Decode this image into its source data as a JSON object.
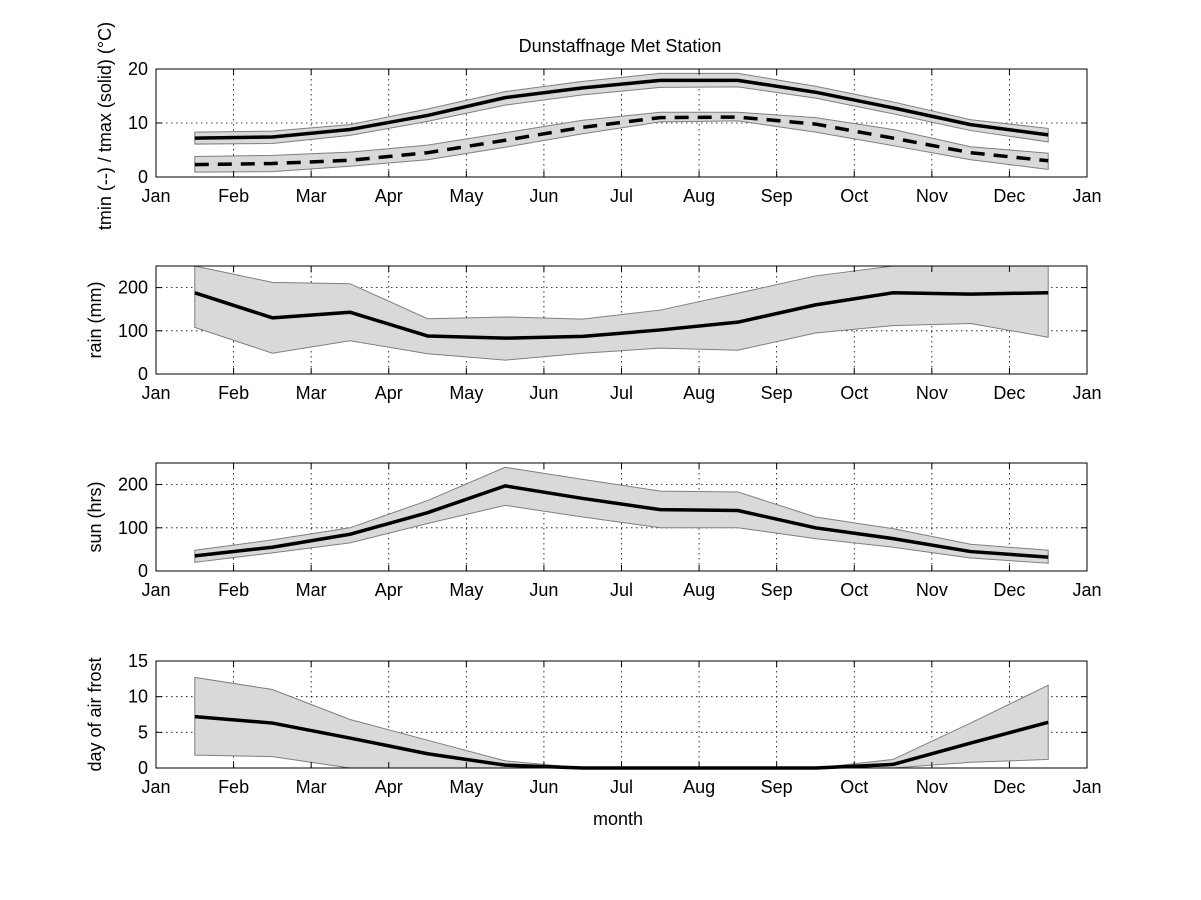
{
  "figure": {
    "title": "Dunstaffnage Met Station",
    "xlabel": "month"
  },
  "colors": {
    "band_fill": "#d9d9d9",
    "band_edge": "#7f7f7f",
    "line": "#000000",
    "grid": "#000000",
    "background": "#ffffff"
  },
  "chart_data": [
    {
      "type": "line",
      "title": "Dunstaffnage Met Station",
      "ylabel": "tmin (--) / tmax (solid) (°C)",
      "xlabel": "",
      "x_ticks": [
        "Jan",
        "Feb",
        "Mar",
        "Apr",
        "May",
        "Jun",
        "Jul",
        "Aug",
        "Sep",
        "Oct",
        "Nov",
        "Dec",
        "Jan"
      ],
      "x": [
        0.5,
        1.5,
        2.5,
        3.5,
        4.5,
        5.5,
        6.5,
        7.5,
        8.5,
        9.5,
        10.5,
        11.5
      ],
      "xlim": [
        0,
        12
      ],
      "ylim": [
        0,
        20
      ],
      "y_ticks": [
        0,
        10,
        20
      ],
      "grid": true,
      "series": [
        {
          "style": "solid",
          "values": [
            7.2,
            7.4,
            8.8,
            11.4,
            14.7,
            16.5,
            17.9,
            17.9,
            15.7,
            12.8,
            9.7,
            7.8
          ],
          "lower": [
            6.1,
            6.2,
            7.7,
            10.3,
            13.3,
            15.2,
            16.6,
            16.7,
            14.6,
            11.7,
            8.6,
            6.5
          ],
          "upper": [
            8.3,
            8.5,
            9.7,
            12.6,
            15.8,
            17.7,
            19.2,
            19.2,
            16.8,
            13.9,
            10.6,
            9.0
          ]
        },
        {
          "style": "dashed",
          "values": [
            2.3,
            2.5,
            3.1,
            4.5,
            6.8,
            9.2,
            11.0,
            11.1,
            9.8,
            7.2,
            4.5,
            3.0
          ],
          "lower": [
            0.9,
            1.0,
            2.0,
            3.2,
            5.5,
            8.0,
            10.2,
            10.4,
            8.3,
            5.8,
            3.2,
            1.4
          ],
          "upper": [
            3.8,
            4.0,
            4.6,
            5.9,
            8.2,
            10.5,
            12.0,
            12.0,
            11.0,
            8.8,
            5.6,
            4.4
          ]
        }
      ]
    },
    {
      "type": "line",
      "title": "",
      "ylabel": "rain (mm)",
      "xlabel": "",
      "x_ticks": [
        "Jan",
        "Feb",
        "Mar",
        "Apr",
        "May",
        "Jun",
        "Jul",
        "Aug",
        "Sep",
        "Oct",
        "Nov",
        "Dec",
        "Jan"
      ],
      "x": [
        0.5,
        1.5,
        2.5,
        3.5,
        4.5,
        5.5,
        6.5,
        7.5,
        8.5,
        9.5,
        10.5,
        11.5
      ],
      "xlim": [
        0,
        12
      ],
      "ylim": [
        0,
        250
      ],
      "y_ticks": [
        0,
        100,
        200
      ],
      "grid": true,
      "series": [
        {
          "style": "solid",
          "values": [
            188,
            130,
            143,
            88,
            83,
            87,
            102,
            120,
            160,
            188,
            185,
            188
          ],
          "lower": [
            108,
            48,
            77,
            47,
            32,
            48,
            60,
            55,
            95,
            112,
            117,
            85
          ],
          "upper": [
            250,
            212,
            209,
            128,
            132,
            127,
            148,
            187,
            227,
            250,
            250,
            250
          ]
        }
      ]
    },
    {
      "type": "line",
      "title": "",
      "ylabel": "sun (hrs)",
      "xlabel": "",
      "x_ticks": [
        "Jan",
        "Feb",
        "Mar",
        "Apr",
        "May",
        "Jun",
        "Jul",
        "Aug",
        "Sep",
        "Oct",
        "Nov",
        "Dec",
        "Jan"
      ],
      "x": [
        0.5,
        1.5,
        2.5,
        3.5,
        4.5,
        5.5,
        6.5,
        7.5,
        8.5,
        9.5,
        10.5,
        11.5
      ],
      "xlim": [
        0,
        12
      ],
      "ylim": [
        0,
        250
      ],
      "y_ticks": [
        0,
        100,
        200
      ],
      "grid": true,
      "series": [
        {
          "style": "solid",
          "values": [
            35,
            55,
            85,
            135,
            197,
            168,
            142,
            140,
            100,
            75,
            45,
            32
          ],
          "lower": [
            20,
            42,
            65,
            110,
            152,
            125,
            100,
            100,
            75,
            55,
            30,
            18
          ],
          "upper": [
            48,
            72,
            100,
            163,
            240,
            212,
            185,
            183,
            125,
            98,
            62,
            48
          ]
        }
      ]
    },
    {
      "type": "line",
      "title": "",
      "ylabel": "day of air frost",
      "xlabel": "month",
      "x_ticks": [
        "Jan",
        "Feb",
        "Mar",
        "Apr",
        "May",
        "Jun",
        "Jul",
        "Aug",
        "Sep",
        "Oct",
        "Nov",
        "Dec",
        "Jan"
      ],
      "x": [
        0.5,
        1.5,
        2.5,
        3.5,
        4.5,
        5.5,
        6.5,
        7.5,
        8.5,
        9.5,
        10.5,
        11.5
      ],
      "xlim": [
        0,
        12
      ],
      "ylim": [
        0,
        15
      ],
      "y_ticks": [
        0,
        5,
        10,
        15
      ],
      "grid": true,
      "series": [
        {
          "style": "solid",
          "values": [
            7.2,
            6.3,
            4.2,
            2.0,
            0.4,
            0.0,
            0.0,
            0.0,
            0.0,
            0.5,
            3.5,
            6.4
          ],
          "lower": [
            1.8,
            1.6,
            0.0,
            0.0,
            0.0,
            0.0,
            0.0,
            0.0,
            0.0,
            0.0,
            0.8,
            1.2
          ],
          "upper": [
            12.7,
            11.0,
            6.8,
            3.9,
            1.0,
            0.0,
            0.0,
            0.0,
            0.0,
            1.2,
            6.3,
            11.6
          ]
        }
      ]
    }
  ]
}
